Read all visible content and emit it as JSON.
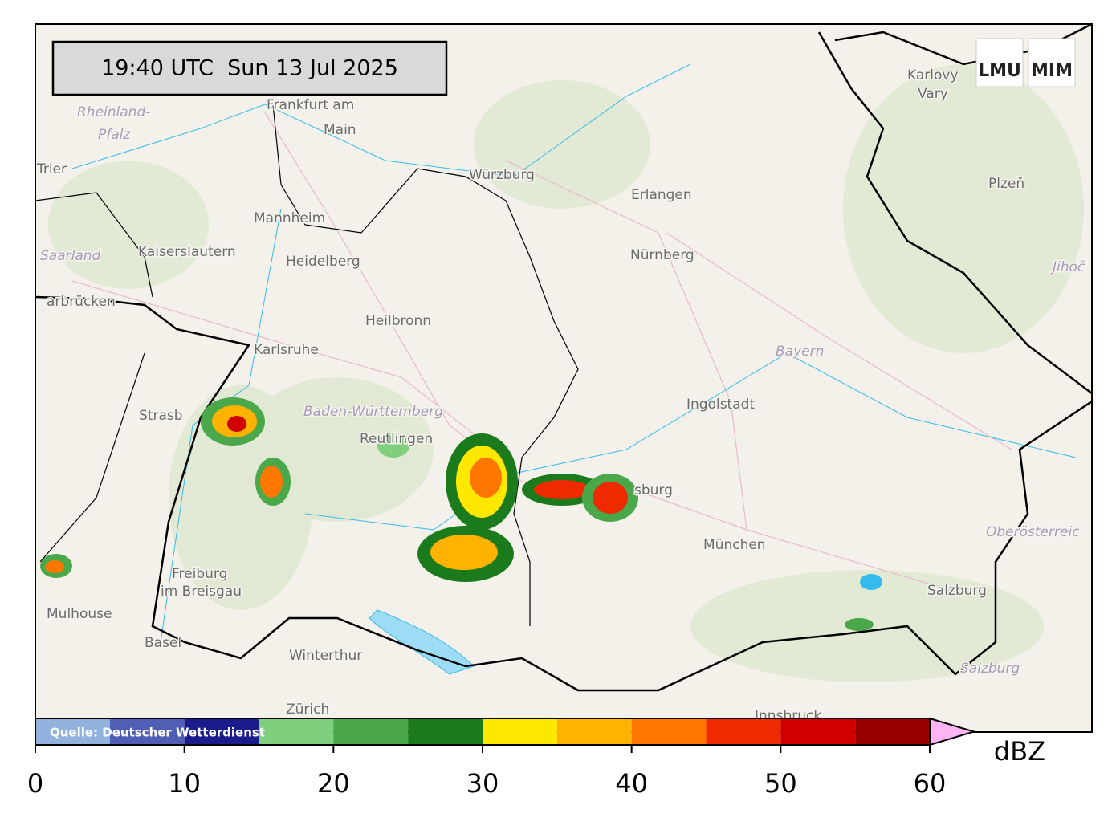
{
  "timestamp": "19:40 UTC  Sun 13 Jul 2025",
  "logos": [
    "LMU",
    "MIM"
  ],
  "source": "Quelle: Deutscher Wetterdienst",
  "places": [
    "Frankfurt am",
    "Main",
    "Rheinland-",
    "Pfalz",
    "Trier",
    "Mannheim",
    "Kaiserslautern",
    "Heidelberg",
    "Saarland",
    "arbrücken",
    "Heilbronn",
    "Karlsruhe",
    "Strasb",
    "Baden-Württemberg",
    "Reutlingen",
    "Würzburg",
    "Erlangen",
    "Nürnberg",
    "Ingolstadt",
    "Bayern",
    "München",
    "sburg",
    "Freiburg",
    "im Breisgau",
    "Mulhouse",
    "Basel",
    "Winterthur",
    "Zürich",
    "Karlovy",
    "Vary",
    "Plzeň",
    "Jihoč",
    "Oberösterreic",
    "Salzburg",
    "Salzburg",
    "Innsbruck"
  ],
  "colorbar": {
    "label": "dBZ",
    "lim": [
      0,
      60
    ],
    "bounds": [
      0,
      5,
      10,
      15,
      20,
      25,
      30,
      35,
      40,
      45,
      50,
      55,
      60
    ],
    "colors": [
      "#90b2dc",
      "#4f5fb5",
      "#1b1c8c",
      "#7fcf7c",
      "#4aa84a",
      "#1b7a1b",
      "#ffe800",
      "#ffb300",
      "#ff7700",
      "#f02a00",
      "#d00000",
      "#980000"
    ],
    "extend_color": "#ffb4f4",
    "ticks": [
      0,
      10,
      20,
      30,
      40,
      50,
      60
    ]
  }
}
